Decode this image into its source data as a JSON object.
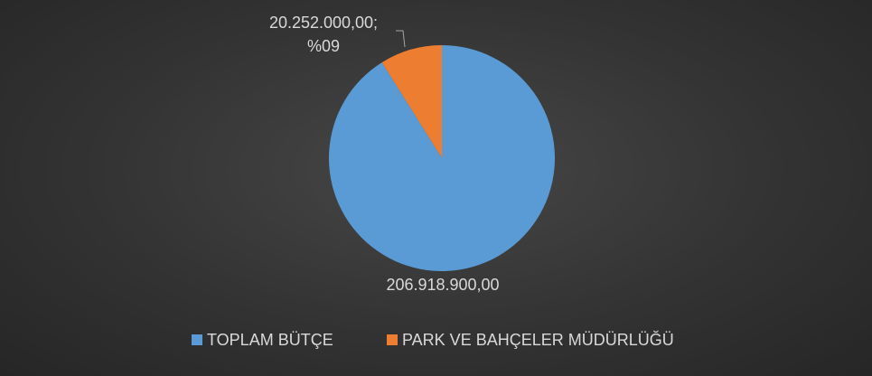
{
  "chart_data": {
    "type": "pie",
    "categories": [
      "TOPLAM BÜTÇE",
      "PARK VE BAHÇELER MÜDÜRLÜĞÜ"
    ],
    "values": [
      206918900,
      20252000
    ],
    "value_labels": [
      "206.918.900,00",
      "20.252.000,00; %09"
    ],
    "colors": [
      "#5b9bd5",
      "#ed7d31"
    ],
    "legend": "bottom"
  }
}
